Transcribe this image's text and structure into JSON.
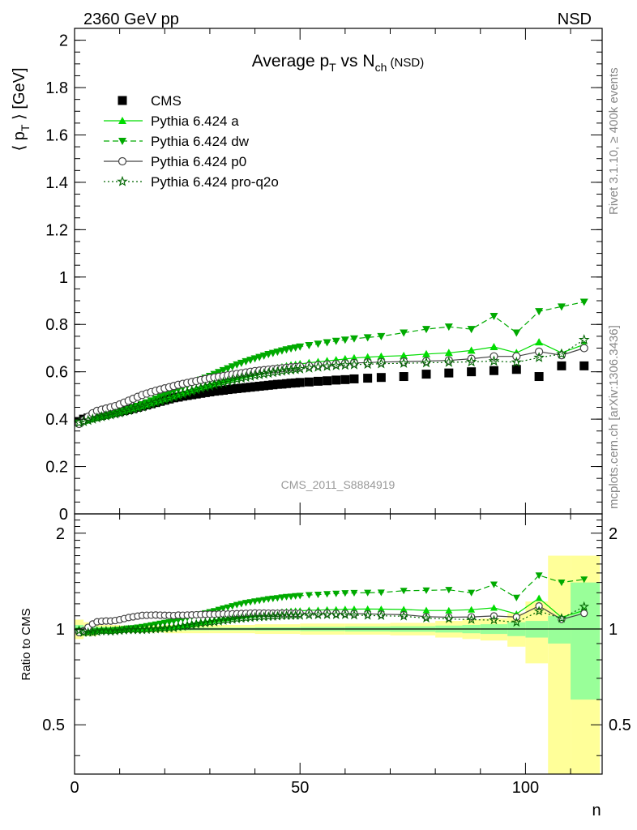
{
  "header": {
    "left": "2360 GeV pp",
    "right": "NSD"
  },
  "side": {
    "rivet": "Rivet 3.1.10, ≥ 400k events",
    "mcplots": "mcplots.cern.ch [arXiv:1306.3436]"
  },
  "chart_data": {
    "type": "scatter",
    "title": "Average p_T vs N_ch (NSD)",
    "title_parts": {
      "a": "Average p",
      "a_sub": "T",
      "b": " vs N",
      "b_sub": "ch",
      "c": " (NSD)"
    },
    "ylabel": "⟨ p_T ⟩ [GeV]",
    "ylabel_parts": {
      "a": "⟨ p",
      "sub": "T",
      "b": " ⟩ [GeV]"
    },
    "xlabel": "n",
    "ratio_ylabel": "Ratio to CMS",
    "watermark": "CMS_2011_S8884919",
    "xlim": [
      0,
      117
    ],
    "ylim": [
      0,
      2.05
    ],
    "ratio_ylim": [
      0.35,
      2.3
    ],
    "ratio_log": true,
    "x_ticks": [
      "0",
      "50",
      "100"
    ],
    "y_ticks": [
      "0",
      "0.2",
      "0.4",
      "0.6",
      "0.8",
      "1",
      "1.2",
      "1.4",
      "1.6",
      "1.8",
      "2"
    ],
    "ratio_ticks": [
      "0.5",
      "1",
      "2"
    ],
    "legend_position": "top-left",
    "colors": {
      "cms": "#000000",
      "pythia_a": "#00dd00",
      "pythia_dw": "#00aa00",
      "pythia_p0": "#444444",
      "pythia_proq2o": "#006600",
      "band_yellow": "#ffff99",
      "band_green": "#99ff99"
    },
    "series": [
      {
        "name": "CMS",
        "marker": "square",
        "x": [
          1,
          2,
          3,
          4,
          5,
          6,
          7,
          8,
          9,
          10,
          11,
          12,
          13,
          14,
          15,
          16,
          17,
          18,
          19,
          20,
          21,
          22,
          23,
          24,
          25,
          26,
          27,
          28,
          29,
          30,
          31,
          32,
          33,
          34,
          35,
          36,
          37,
          38,
          39,
          40,
          41,
          42,
          43,
          44,
          45,
          46,
          47,
          48,
          49,
          50,
          52,
          54,
          56,
          58,
          60,
          62,
          65,
          68,
          73,
          78,
          83,
          88,
          93,
          98,
          103,
          108,
          113
        ],
        "y": [
          0.39,
          0.4,
          0.405,
          0.41,
          0.413,
          0.416,
          0.42,
          0.425,
          0.428,
          0.432,
          0.436,
          0.44,
          0.445,
          0.45,
          0.455,
          0.46,
          0.465,
          0.47,
          0.475,
          0.48,
          0.485,
          0.49,
          0.493,
          0.497,
          0.5,
          0.503,
          0.506,
          0.509,
          0.512,
          0.515,
          0.518,
          0.52,
          0.522,
          0.525,
          0.527,
          0.529,
          0.531,
          0.533,
          0.535,
          0.537,
          0.539,
          0.541,
          0.543,
          0.545,
          0.547,
          0.548,
          0.55,
          0.552,
          0.553,
          0.555,
          0.557,
          0.56,
          0.562,
          0.565,
          0.567,
          0.57,
          0.573,
          0.576,
          0.58,
          0.59,
          0.595,
          0.6,
          0.605,
          0.61,
          0.58,
          0.625,
          0.625
        ]
      },
      {
        "name": "Pythia 6.424 a",
        "marker": "triangle-up",
        "line": "solid",
        "x": [
          1,
          2,
          3,
          4,
          5,
          6,
          7,
          8,
          9,
          10,
          11,
          12,
          13,
          14,
          15,
          16,
          17,
          18,
          19,
          20,
          21,
          22,
          23,
          24,
          25,
          26,
          27,
          28,
          29,
          30,
          31,
          32,
          33,
          34,
          35,
          36,
          37,
          38,
          39,
          40,
          41,
          42,
          43,
          44,
          45,
          46,
          47,
          48,
          49,
          50,
          52,
          54,
          56,
          58,
          60,
          62,
          65,
          68,
          73,
          78,
          83,
          88,
          93,
          98,
          103,
          108,
          113
        ],
        "y": [
          0.39,
          0.395,
          0.4,
          0.405,
          0.41,
          0.413,
          0.416,
          0.42,
          0.425,
          0.43,
          0.435,
          0.44,
          0.445,
          0.45,
          0.456,
          0.462,
          0.468,
          0.474,
          0.48,
          0.486,
          0.492,
          0.498,
          0.504,
          0.51,
          0.516,
          0.522,
          0.528,
          0.534,
          0.54,
          0.546,
          0.552,
          0.558,
          0.563,
          0.568,
          0.573,
          0.578,
          0.583,
          0.588,
          0.592,
          0.596,
          0.6,
          0.604,
          0.608,
          0.612,
          0.616,
          0.62,
          0.624,
          0.628,
          0.63,
          0.633,
          0.638,
          0.642,
          0.646,
          0.65,
          0.654,
          0.658,
          0.662,
          0.665,
          0.668,
          0.675,
          0.68,
          0.69,
          0.705,
          0.68,
          0.725,
          0.68,
          0.715
        ]
      },
      {
        "name": "Pythia 6.424 dw",
        "marker": "triangle-down",
        "line": "dashed",
        "x": [
          1,
          2,
          3,
          4,
          5,
          6,
          7,
          8,
          9,
          10,
          11,
          12,
          13,
          14,
          15,
          16,
          17,
          18,
          19,
          20,
          21,
          22,
          23,
          24,
          25,
          26,
          27,
          28,
          29,
          30,
          31,
          32,
          33,
          34,
          35,
          36,
          37,
          38,
          39,
          40,
          41,
          42,
          43,
          44,
          45,
          46,
          47,
          48,
          49,
          50,
          52,
          54,
          56,
          58,
          60,
          62,
          65,
          68,
          73,
          78,
          83,
          88,
          93,
          98,
          103,
          108,
          113
        ],
        "y": [
          0.385,
          0.39,
          0.395,
          0.4,
          0.405,
          0.41,
          0.415,
          0.42,
          0.425,
          0.43,
          0.436,
          0.442,
          0.448,
          0.455,
          0.462,
          0.47,
          0.478,
          0.486,
          0.494,
          0.502,
          0.51,
          0.518,
          0.526,
          0.534,
          0.542,
          0.55,
          0.558,
          0.566,
          0.574,
          0.582,
          0.59,
          0.598,
          0.606,
          0.614,
          0.622,
          0.63,
          0.637,
          0.644,
          0.65,
          0.656,
          0.662,
          0.668,
          0.674,
          0.679,
          0.684,
          0.689,
          0.694,
          0.698,
          0.702,
          0.706,
          0.712,
          0.718,
          0.724,
          0.73,
          0.735,
          0.74,
          0.745,
          0.75,
          0.765,
          0.78,
          0.79,
          0.78,
          0.835,
          0.765,
          0.855,
          0.875,
          0.895
        ]
      },
      {
        "name": "Pythia 6.424 p0",
        "marker": "circle-open",
        "line": "solid",
        "x": [
          1,
          2,
          3,
          4,
          5,
          6,
          7,
          8,
          9,
          10,
          11,
          12,
          13,
          14,
          15,
          16,
          17,
          18,
          19,
          20,
          21,
          22,
          23,
          24,
          25,
          26,
          27,
          28,
          29,
          30,
          31,
          32,
          33,
          34,
          35,
          36,
          37,
          38,
          39,
          40,
          41,
          42,
          43,
          44,
          45,
          46,
          47,
          48,
          49,
          50,
          52,
          54,
          56,
          58,
          60,
          62,
          65,
          68,
          73,
          78,
          83,
          88,
          93,
          98,
          103,
          108,
          113
        ],
        "y": [
          0.38,
          0.395,
          0.41,
          0.425,
          0.435,
          0.44,
          0.445,
          0.45,
          0.455,
          0.462,
          0.47,
          0.478,
          0.486,
          0.494,
          0.502,
          0.508,
          0.514,
          0.52,
          0.525,
          0.53,
          0.535,
          0.54,
          0.545,
          0.549,
          0.553,
          0.557,
          0.561,
          0.565,
          0.569,
          0.573,
          0.576,
          0.579,
          0.582,
          0.585,
          0.588,
          0.591,
          0.594,
          0.597,
          0.6,
          0.603,
          0.605,
          0.607,
          0.609,
          0.611,
          0.613,
          0.615,
          0.617,
          0.619,
          0.62,
          0.622,
          0.625,
          0.628,
          0.631,
          0.633,
          0.635,
          0.637,
          0.639,
          0.641,
          0.643,
          0.645,
          0.648,
          0.655,
          0.665,
          0.665,
          0.685,
          0.67,
          0.7
        ]
      },
      {
        "name": "Pythia 6.424 pro-q2o",
        "marker": "star-open",
        "line": "dotted",
        "x": [
          1,
          2,
          3,
          4,
          5,
          6,
          7,
          8,
          9,
          10,
          11,
          12,
          13,
          14,
          15,
          16,
          17,
          18,
          19,
          20,
          21,
          22,
          23,
          24,
          25,
          26,
          27,
          28,
          29,
          30,
          31,
          32,
          33,
          34,
          35,
          36,
          37,
          38,
          39,
          40,
          41,
          42,
          43,
          44,
          45,
          46,
          47,
          48,
          49,
          50,
          52,
          54,
          56,
          58,
          60,
          62,
          65,
          68,
          73,
          78,
          83,
          88,
          93,
          98,
          103,
          108,
          113
        ],
        "y": [
          0.385,
          0.39,
          0.395,
          0.4,
          0.405,
          0.41,
          0.414,
          0.418,
          0.422,
          0.427,
          0.432,
          0.437,
          0.442,
          0.447,
          0.452,
          0.458,
          0.464,
          0.47,
          0.476,
          0.482,
          0.488,
          0.494,
          0.5,
          0.506,
          0.512,
          0.518,
          0.524,
          0.53,
          0.535,
          0.54,
          0.545,
          0.55,
          0.555,
          0.56,
          0.565,
          0.569,
          0.573,
          0.577,
          0.581,
          0.585,
          0.588,
          0.591,
          0.594,
          0.597,
          0.6,
          0.603,
          0.606,
          0.608,
          0.61,
          0.612,
          0.616,
          0.62,
          0.623,
          0.626,
          0.628,
          0.63,
          0.632,
          0.634,
          0.636,
          0.638,
          0.64,
          0.642,
          0.645,
          0.64,
          0.66,
          0.675,
          0.735
        ]
      }
    ],
    "uncertainty_band": {
      "x_edges": [
        0,
        2,
        5,
        10,
        20,
        30,
        40,
        50,
        60,
        70,
        80,
        86,
        90,
        96,
        100,
        105,
        110,
        116.5
      ],
      "stat_rel": [
        0.03,
        0.02,
        0.015,
        0.01,
        0.01,
        0.01,
        0.012,
        0.015,
        0.018,
        0.02,
        0.025,
        0.03,
        0.035,
        0.05,
        0.06,
        0.1,
        0.4,
        0.6
      ],
      "total_rel": [
        0.07,
        0.05,
        0.03,
        0.025,
        0.03,
        0.03,
        0.035,
        0.04,
        0.04,
        0.045,
        0.06,
        0.07,
        0.08,
        0.12,
        0.22,
        0.7,
        0.7,
        1.0
      ]
    }
  }
}
